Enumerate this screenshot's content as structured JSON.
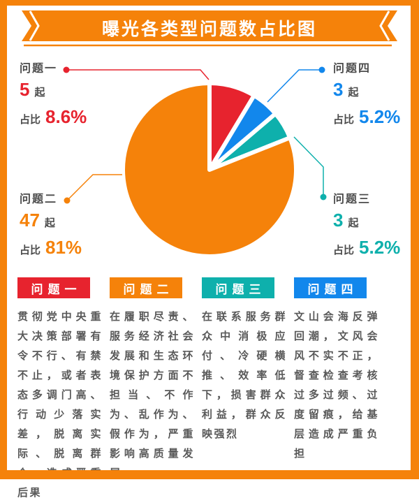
{
  "banner": {
    "title": "曝光各类型问题数占比图"
  },
  "colors": {
    "orange": "#f5820a",
    "red": "#e7232e",
    "blue": "#1287ec",
    "teal": "#0eb0ac",
    "dark_text": "#4c4c4c",
    "body_text": "#595959",
    "white": "#ffffff"
  },
  "callouts": {
    "q1": {
      "name": "问题一",
      "count": "5",
      "unit": "起",
      "ratio_label": "占比",
      "percent": "8.6%"
    },
    "q2": {
      "name": "问题二",
      "count": "47",
      "unit": "起",
      "ratio_label": "占比",
      "percent": "81%"
    },
    "q3": {
      "name": "问题三",
      "count": "3",
      "unit": "起",
      "ratio_label": "占比",
      "percent": "5.2%"
    },
    "q4": {
      "name": "问题四",
      "count": "3",
      "unit": "起",
      "ratio_label": "占比",
      "percent": "5.2%"
    }
  },
  "legend": {
    "items": [
      {
        "title": "问题一",
        "description": "贯彻党中央重大决策部署有令不行、有禁不止，或者表态多调门高、行动少落实差，脱离实际、脱离群众，造成严重后果"
      },
      {
        "title": "问题二",
        "description": "在履职尽责、服务经济社会发展和生态环境保护方面不担当、不作为、乱作为、假作为，严重影响高质量发展"
      },
      {
        "title": "问题三",
        "description": "在联系服务群众中消极应付、冷硬横推、效率低下，损害群众利益，群众反映强烈"
      },
      {
        "title": "问题四",
        "description": "文山会海反弹回潮，文风会风不实不正，督查检查考核过多过频、过度留痕，给基层造成严重负担"
      }
    ]
  },
  "chart_data": {
    "type": "pie",
    "title": "曝光各类型问题数占比图",
    "unit": "起",
    "total_count": 58,
    "start_angle_deg": 0,
    "direction": "clockwise",
    "legend_position": "bottom",
    "slices": [
      {
        "label": "问题一",
        "count": 5,
        "percent": 8.6,
        "color": "#e7232e"
      },
      {
        "label": "问题四",
        "count": 3,
        "percent": 5.2,
        "color": "#1287ec"
      },
      {
        "label": "问题三",
        "count": 3,
        "percent": 5.2,
        "color": "#0eb0ac"
      },
      {
        "label": "问题二",
        "count": 47,
        "percent": 81,
        "color": "#f5820a"
      }
    ]
  }
}
